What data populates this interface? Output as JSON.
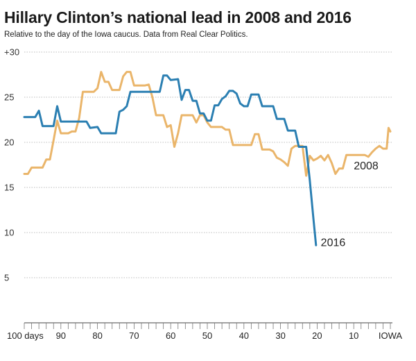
{
  "chart_data": {
    "type": "line",
    "title": "Hillary Clinton’s national lead in 2008 and 2016",
    "subtitle": "Relative to the day of the Iowa caucus. Data from Real Clear Politics.",
    "xlim": [
      100,
      0
    ],
    "ylim": [
      0,
      30
    ],
    "x_tick_labels": [
      {
        "x": 100,
        "label": "100 days"
      },
      {
        "x": 90,
        "label": "90"
      },
      {
        "x": 80,
        "label": "80"
      },
      {
        "x": 70,
        "label": "70"
      },
      {
        "x": 60,
        "label": "60"
      },
      {
        "x": 50,
        "label": "50"
      },
      {
        "x": 40,
        "label": "40"
      },
      {
        "x": 30,
        "label": "30"
      },
      {
        "x": 20,
        "label": "20"
      },
      {
        "x": 10,
        "label": "10"
      },
      {
        "x": 0,
        "label": "IOWA"
      }
    ],
    "y_tick_labels": [
      {
        "y": 30,
        "label": "+30"
      },
      {
        "y": 25,
        "label": "25"
      },
      {
        "y": 20,
        "label": "20"
      },
      {
        "y": 15,
        "label": "15"
      },
      {
        "y": 10,
        "label": "10"
      },
      {
        "y": 5,
        "label": "5"
      }
    ],
    "grid": true,
    "series": [
      {
        "name": "2008",
        "color": "#eab56a",
        "points": [
          [
            100,
            16.5
          ],
          [
            99,
            16.5
          ],
          [
            98,
            17.2
          ],
          [
            97,
            17.2
          ],
          [
            96,
            17.2
          ],
          [
            95,
            17.2
          ],
          [
            94,
            18.1
          ],
          [
            93,
            18.1
          ],
          [
            92,
            20.2
          ],
          [
            91,
            22.4
          ],
          [
            90,
            21.0
          ],
          [
            89,
            21.0
          ],
          [
            88,
            21.0
          ],
          [
            87,
            21.2
          ],
          [
            86,
            21.2
          ],
          [
            85,
            22.7
          ],
          [
            84,
            25.6
          ],
          [
            83,
            25.6
          ],
          [
            82,
            25.6
          ],
          [
            81,
            25.6
          ],
          [
            80,
            26.0
          ],
          [
            79,
            27.8
          ],
          [
            78,
            26.7
          ],
          [
            77,
            26.7
          ],
          [
            76,
            25.8
          ],
          [
            75,
            25.8
          ],
          [
            74,
            25.8
          ],
          [
            73,
            27.3
          ],
          [
            72,
            27.8
          ],
          [
            71,
            27.8
          ],
          [
            70,
            26.3
          ],
          [
            69,
            26.3
          ],
          [
            68,
            26.3
          ],
          [
            67,
            26.3
          ],
          [
            66,
            26.4
          ],
          [
            65,
            25.0
          ],
          [
            64,
            23.0
          ],
          [
            63,
            23.0
          ],
          [
            62,
            23.0
          ],
          [
            61,
            21.7
          ],
          [
            60,
            21.9
          ],
          [
            59,
            19.5
          ],
          [
            58,
            21.0
          ],
          [
            57,
            23.0
          ],
          [
            56,
            23.0
          ],
          [
            55,
            23.0
          ],
          [
            54,
            23.0
          ],
          [
            53,
            22.2
          ],
          [
            52,
            23.0
          ],
          [
            51,
            23.0
          ],
          [
            50,
            22.2
          ],
          [
            49,
            21.7
          ],
          [
            48,
            21.7
          ],
          [
            47,
            21.7
          ],
          [
            46,
            21.7
          ],
          [
            45,
            21.4
          ],
          [
            44,
            21.4
          ],
          [
            43,
            19.7
          ],
          [
            42,
            19.7
          ],
          [
            41,
            19.7
          ],
          [
            40,
            19.7
          ],
          [
            39,
            19.7
          ],
          [
            38,
            19.7
          ],
          [
            37,
            20.9
          ],
          [
            36,
            20.9
          ],
          [
            35,
            19.2
          ],
          [
            34,
            19.2
          ],
          [
            33,
            19.2
          ],
          [
            32,
            19.0
          ],
          [
            31,
            18.3
          ],
          [
            30,
            18.1
          ],
          [
            29,
            17.8
          ],
          [
            28,
            17.4
          ],
          [
            27,
            19.3
          ],
          [
            26,
            19.6
          ],
          [
            25,
            19.6
          ],
          [
            24,
            19.6
          ],
          [
            23,
            16.3
          ],
          [
            22,
            18.5
          ],
          [
            21,
            18.0
          ],
          [
            20,
            18.2
          ],
          [
            19,
            18.5
          ],
          [
            18,
            18.0
          ],
          [
            17,
            18.6
          ],
          [
            16,
            17.7
          ],
          [
            15,
            16.5
          ],
          [
            14,
            17.1
          ],
          [
            13,
            17.1
          ],
          [
            12,
            18.6
          ],
          [
            11,
            18.6
          ],
          [
            10,
            18.6
          ],
          [
            9,
            18.6
          ],
          [
            8,
            18.6
          ],
          [
            7,
            18.6
          ],
          [
            6,
            18.4
          ],
          [
            5,
            18.9
          ],
          [
            4,
            19.3
          ],
          [
            3,
            19.6
          ],
          [
            2,
            19.3
          ],
          [
            1,
            19.3
          ],
          [
            0.5,
            21.6
          ],
          [
            0,
            21.2
          ]
        ]
      },
      {
        "name": "2016",
        "color": "#2b7fb2",
        "points": [
          [
            100,
            22.8
          ],
          [
            97,
            22.8
          ],
          [
            96,
            23.5
          ],
          [
            95,
            21.8
          ],
          [
            92,
            21.8
          ],
          [
            91,
            24.0
          ],
          [
            90,
            22.3
          ],
          [
            83,
            22.3
          ],
          [
            82,
            21.6
          ],
          [
            80,
            21.7
          ],
          [
            79,
            21.0
          ],
          [
            75,
            21.0
          ],
          [
            74,
            23.4
          ],
          [
            73,
            23.6
          ],
          [
            72,
            24.0
          ],
          [
            71,
            25.6
          ],
          [
            63,
            25.6
          ],
          [
            62,
            27.4
          ],
          [
            61,
            27.4
          ],
          [
            60,
            26.9
          ],
          [
            58,
            27.0
          ],
          [
            57,
            24.7
          ],
          [
            56,
            25.8
          ],
          [
            55,
            25.8
          ],
          [
            54,
            24.6
          ],
          [
            53,
            24.6
          ],
          [
            52,
            23.2
          ],
          [
            51,
            23.2
          ],
          [
            50,
            22.4
          ],
          [
            49,
            22.4
          ],
          [
            48,
            24.1
          ],
          [
            47,
            24.1
          ],
          [
            46,
            24.8
          ],
          [
            45,
            25.1
          ],
          [
            44,
            25.7
          ],
          [
            43,
            25.7
          ],
          [
            42,
            25.4
          ],
          [
            41,
            24.3
          ],
          [
            40,
            24.0
          ],
          [
            39,
            24.0
          ],
          [
            38,
            25.3
          ],
          [
            36,
            25.3
          ],
          [
            35,
            24.0
          ],
          [
            32,
            24.0
          ],
          [
            31,
            22.6
          ],
          [
            29,
            22.6
          ],
          [
            28,
            21.3
          ],
          [
            26,
            21.3
          ],
          [
            25,
            19.5
          ],
          [
            23,
            19.5
          ],
          [
            22,
            15.8
          ],
          [
            21,
            11.5
          ],
          [
            20.3,
            8.6
          ]
        ]
      }
    ],
    "annotations": [
      {
        "series": "2008",
        "text": "2008",
        "x": 10,
        "y": 17
      },
      {
        "series": "2016",
        "text": "2016",
        "x": 19,
        "y": 8.5
      }
    ]
  }
}
